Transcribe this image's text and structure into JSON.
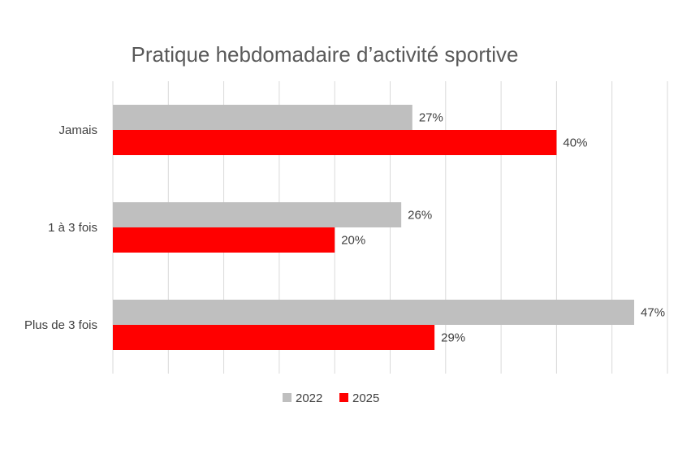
{
  "chart_data": {
    "type": "bar",
    "orientation": "horizontal",
    "title": "Pratique hebdomadaire d’activité sportive",
    "categories": [
      "Jamais",
      "1 à 3 fois",
      "Plus de 3 fois"
    ],
    "series": [
      {
        "name": "2022",
        "values": [
          27,
          26,
          47
        ],
        "labels": [
          "27%",
          "26%",
          "47%"
        ],
        "color": "#bfbfbf"
      },
      {
        "name": "2025",
        "values": [
          40,
          20,
          29
        ],
        "labels": [
          "40%",
          "20%",
          "29%"
        ],
        "color": "#ff0000"
      }
    ],
    "xlim": [
      0,
      50
    ],
    "grid": true,
    "legend_position": "bottom"
  }
}
